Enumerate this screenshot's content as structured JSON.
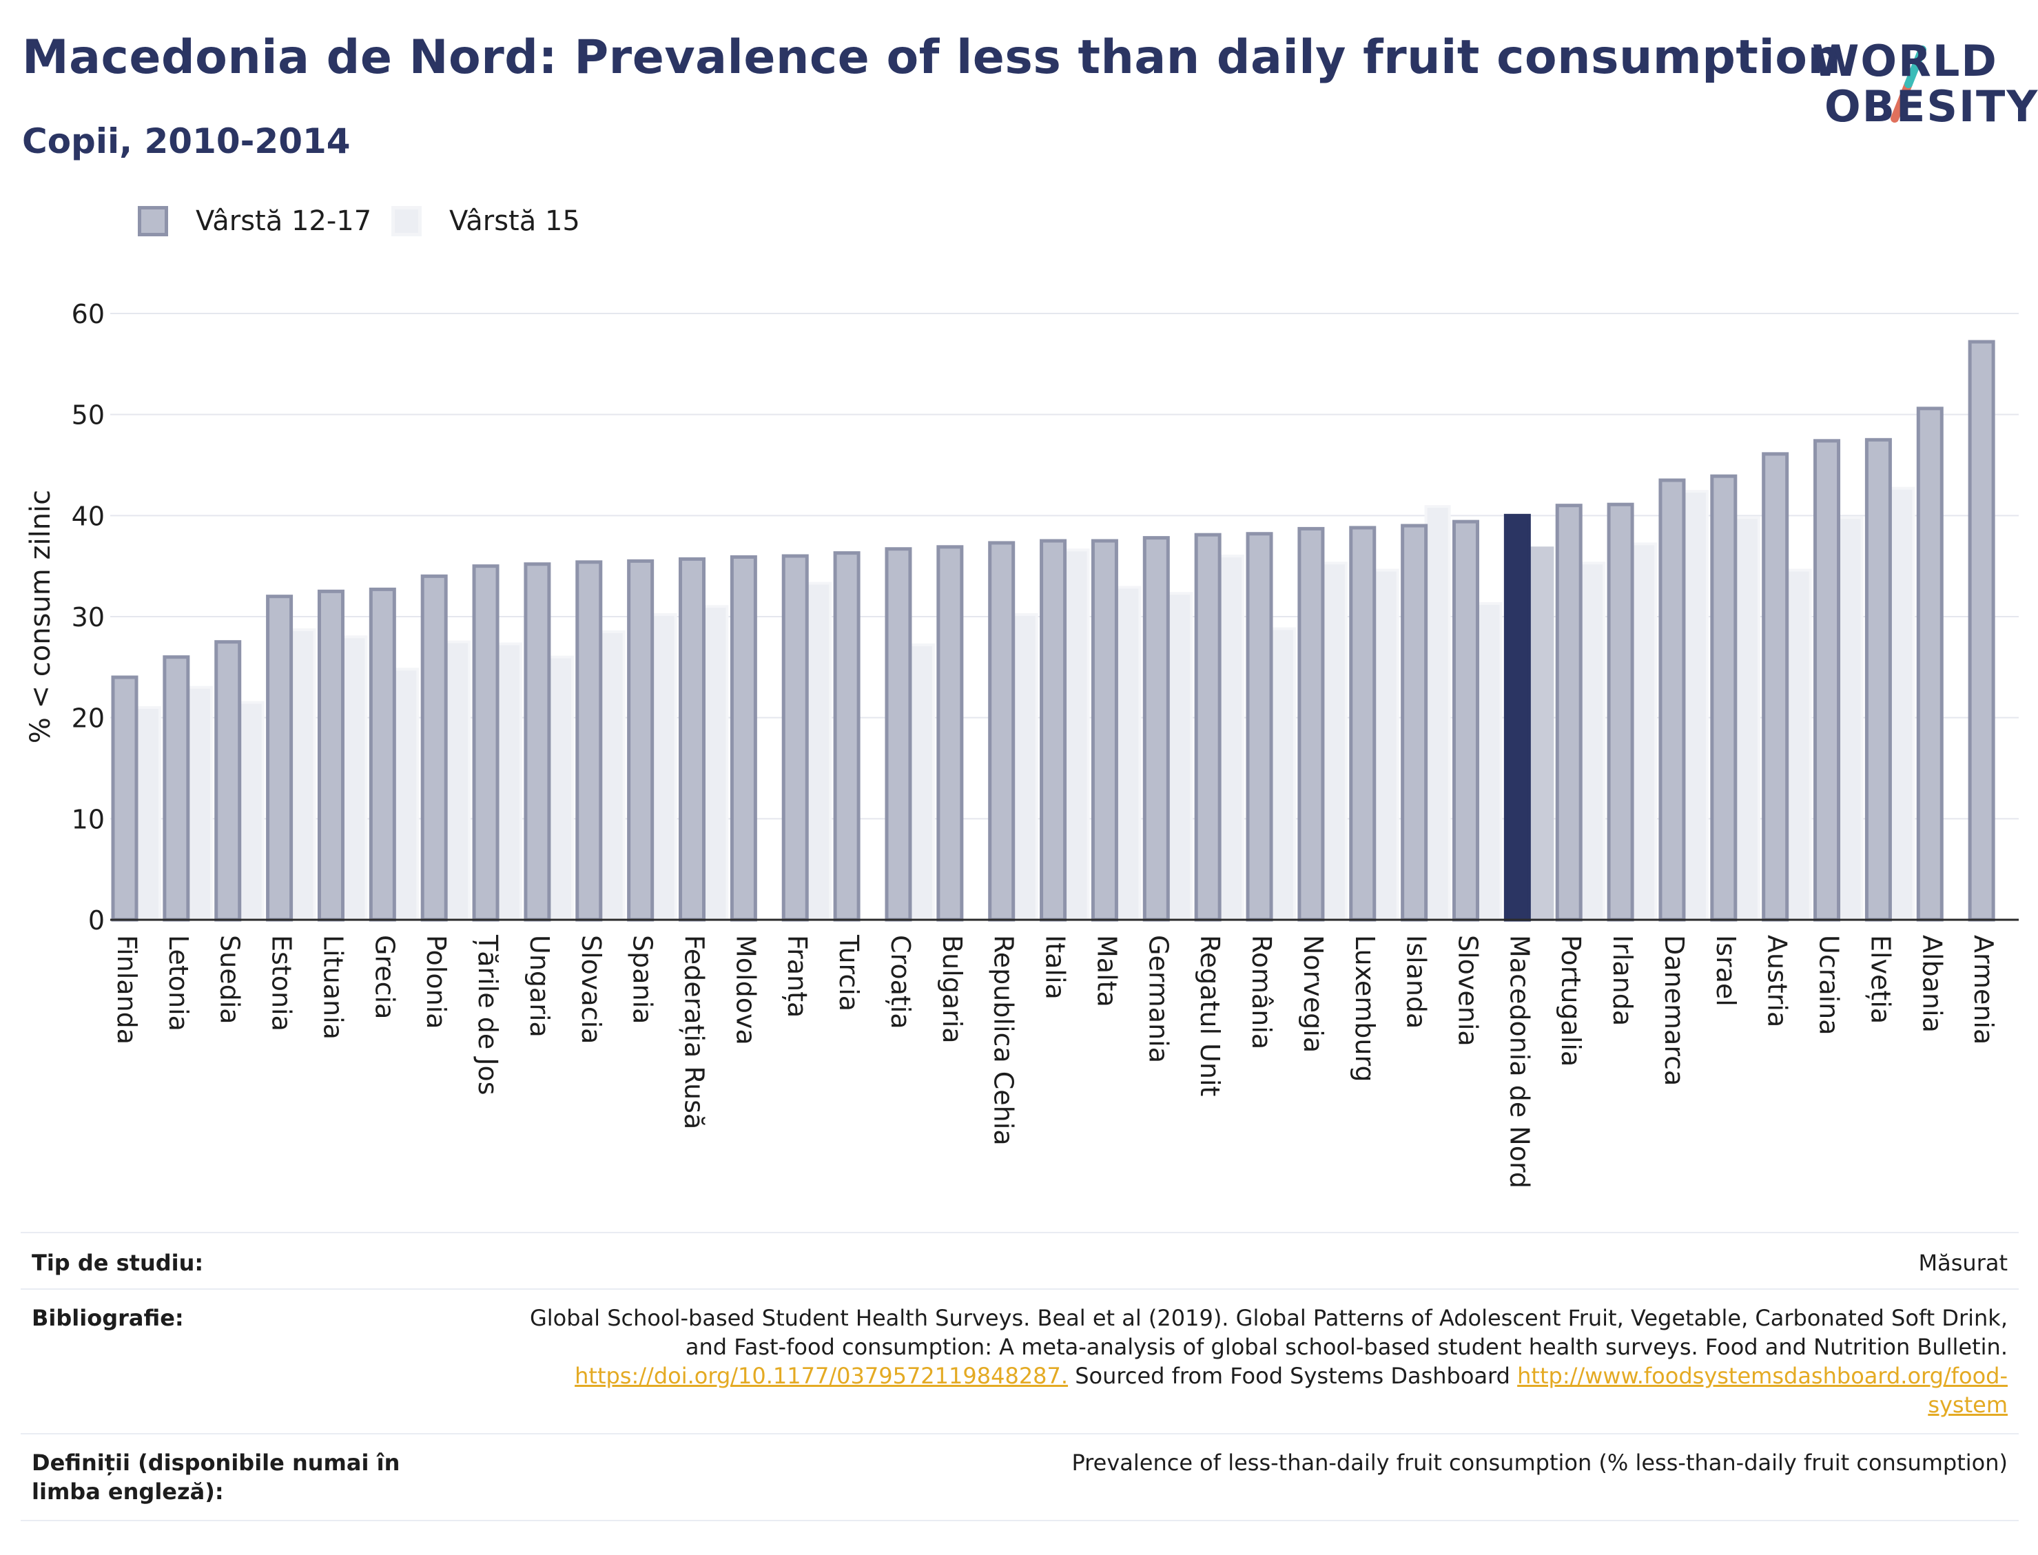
{
  "header": {
    "title": "Macedonia de Nord: Prevalence of less than daily fruit consumption",
    "subtitle": "Copii, 2010-2014"
  },
  "logo": {
    "line1": "WORLD",
    "line2": "OBESITY"
  },
  "legend": [
    {
      "label": "Vârstă 12-17",
      "color": "#b9bdcc",
      "border": "#8e93aa"
    },
    {
      "label": "Vârstă 15",
      "color": "#eceef3",
      "border": "#f3f4f7"
    }
  ],
  "colors": {
    "highlight_primary": "#2b3563",
    "highlight_secondary": "#c9ccd8",
    "series1": "#b9bdcc",
    "series1_border": "#8e93aa",
    "series2": "#eceef3",
    "grid": "#e5e7ee"
  },
  "chart_data": {
    "type": "bar",
    "ylabel": "% < consum zilnic",
    "ylim": [
      0,
      60
    ],
    "yticks": [
      0,
      10,
      20,
      30,
      40,
      50,
      60
    ],
    "grid": true,
    "legend_position": "top-left",
    "highlight": "Macedonia de Nord",
    "categories": [
      "Finlanda",
      "Letonia",
      "Suedia",
      "Estonia",
      "Lituania",
      "Grecia",
      "Polonia",
      "Țările de Jos",
      "Ungaria",
      "Slovacia",
      "Spania",
      "Federația Rusă",
      "Moldova",
      "Franța",
      "Turcia",
      "Croația",
      "Bulgaria",
      "Republica Cehia",
      "Italia",
      "Malta",
      "Germania",
      "Regatul Unit",
      "România",
      "Norvegia",
      "Luxemburg",
      "Islanda",
      "Slovenia",
      "Macedonia de Nord",
      "Portugalia",
      "Irlanda",
      "Danemarca",
      "Israel",
      "Austria",
      "Ucraina",
      "Elveția",
      "Albania",
      "Armenia"
    ],
    "series": [
      {
        "name": "Vârstă 12-17",
        "values": [
          24,
          26,
          27.5,
          32,
          32.5,
          32.7,
          34,
          35,
          35.2,
          35.4,
          35.5,
          35.7,
          35.9,
          36,
          36.3,
          36.7,
          36.9,
          37.3,
          37.5,
          37.5,
          37.8,
          38.1,
          38.2,
          38.7,
          38.8,
          39,
          39.4,
          40,
          41,
          41.1,
          43.5,
          43.9,
          46.1,
          47.4,
          47.5,
          50.6,
          57.2
        ]
      },
      {
        "name": "Vârstă 15",
        "values": [
          21,
          23,
          21.5,
          28.7,
          28,
          24.8,
          27.5,
          27.3,
          26,
          28.5,
          30.2,
          31,
          null,
          33.3,
          null,
          27.2,
          null,
          30.2,
          36.6,
          32.9,
          32.3,
          36,
          28.8,
          35.3,
          34.6,
          40.9,
          31.3,
          36.8,
          35.3,
          37.2,
          42.4,
          39.8,
          34.6,
          39.8,
          42.7,
          null,
          null
        ]
      }
    ]
  },
  "info_table": [
    {
      "key": "Tip de studiu:",
      "value": "Măsurat"
    },
    {
      "key": "Bibliografie:",
      "value_lines": [
        "Global School-based Student Health Surveys. Beal et al (2019). Global Patterns of Adolescent Fruit, Vegetable, Carbonated Soft Drink,",
        "and Fast-food consumption: A meta-analysis of global school-based student health surveys. Food and Nutrition Bulletin."
      ],
      "link1": "https://doi.org/10.1177/0379572119848287.",
      "mid_text": " Sourced from Food Systems Dashboard ",
      "link2_part1": "http://www.foodsystemsdashboard.org/food-",
      "link2_part2": "system"
    },
    {
      "key": "Definiții (disponibile numai în limba engleză):",
      "value": "Prevalence of less-than-daily fruit consumption (% less-than-daily fruit consumption)"
    }
  ]
}
